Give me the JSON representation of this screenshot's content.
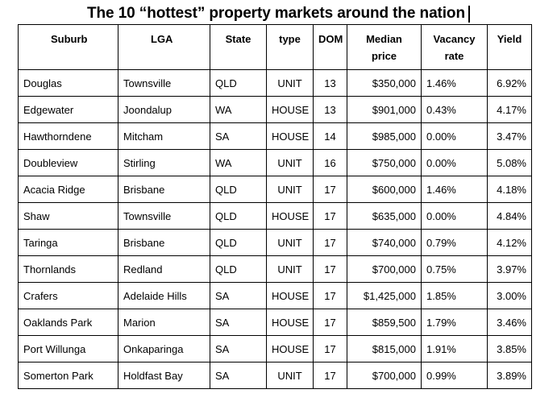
{
  "title": "The 10 “hottest” property markets around the nation",
  "columns": {
    "suburb": "Suburb",
    "lga": "LGA",
    "state": "State",
    "type": "type",
    "dom": "DOM",
    "median_price_line1": "Median",
    "median_price_line2": "price",
    "vacancy_rate_line1": "Vacancy",
    "vacancy_rate_line2": "rate",
    "yield": "Yield"
  },
  "rows": [
    {
      "suburb": "Douglas",
      "lga": "Townsville",
      "state": "QLD",
      "type": "UNIT",
      "dom": "13",
      "median_price": "$350,000",
      "vacancy_rate": "1.46%",
      "yield": "6.92%"
    },
    {
      "suburb": "Edgewater",
      "lga": "Joondalup",
      "state": "WA",
      "type": "HOUSE",
      "dom": "13",
      "median_price": "$901,000",
      "vacancy_rate": "0.43%",
      "yield": "4.17%"
    },
    {
      "suburb": "Hawthorndene",
      "lga": "Mitcham",
      "state": "SA",
      "type": "HOUSE",
      "dom": "14",
      "median_price": "$985,000",
      "vacancy_rate": "0.00%",
      "yield": "3.47%"
    },
    {
      "suburb": "Doubleview",
      "lga": "Stirling",
      "state": "WA",
      "type": "UNIT",
      "dom": "16",
      "median_price": "$750,000",
      "vacancy_rate": "0.00%",
      "yield": "5.08%"
    },
    {
      "suburb": "Acacia Ridge",
      "lga": "Brisbane",
      "state": "QLD",
      "type": "UNIT",
      "dom": "17",
      "median_price": "$600,000",
      "vacancy_rate": "1.46%",
      "yield": "4.18%"
    },
    {
      "suburb": "Shaw",
      "lga": "Townsville",
      "state": "QLD",
      "type": "HOUSE",
      "dom": "17",
      "median_price": "$635,000",
      "vacancy_rate": "0.00%",
      "yield": "4.84%"
    },
    {
      "suburb": "Taringa",
      "lga": "Brisbane",
      "state": "QLD",
      "type": "UNIT",
      "dom": "17",
      "median_price": "$740,000",
      "vacancy_rate": "0.79%",
      "yield": "4.12%"
    },
    {
      "suburb": "Thornlands",
      "lga": "Redland",
      "state": "QLD",
      "type": "UNIT",
      "dom": "17",
      "median_price": "$700,000",
      "vacancy_rate": "0.75%",
      "yield": "3.97%"
    },
    {
      "suburb": "Crafers",
      "lga": "Adelaide Hills",
      "state": "SA",
      "type": "HOUSE",
      "dom": "17",
      "median_price": "$1,425,000",
      "vacancy_rate": "1.85%",
      "yield": "3.00%"
    },
    {
      "suburb": "Oaklands Park",
      "lga": "Marion",
      "state": "SA",
      "type": "HOUSE",
      "dom": "17",
      "median_price": "$859,500",
      "vacancy_rate": "1.79%",
      "yield": "3.46%"
    },
    {
      "suburb": "Port Willunga",
      "lga": "Onkaparinga",
      "state": "SA",
      "type": "HOUSE",
      "dom": "17",
      "median_price": "$815,000",
      "vacancy_rate": "1.91%",
      "yield": "3.85%"
    },
    {
      "suburb": "Somerton Park",
      "lga": "Holdfast Bay",
      "state": "SA",
      "type": "UNIT",
      "dom": "17",
      "median_price": "$700,000",
      "vacancy_rate": "0.99%",
      "yield": "3.89%"
    }
  ]
}
